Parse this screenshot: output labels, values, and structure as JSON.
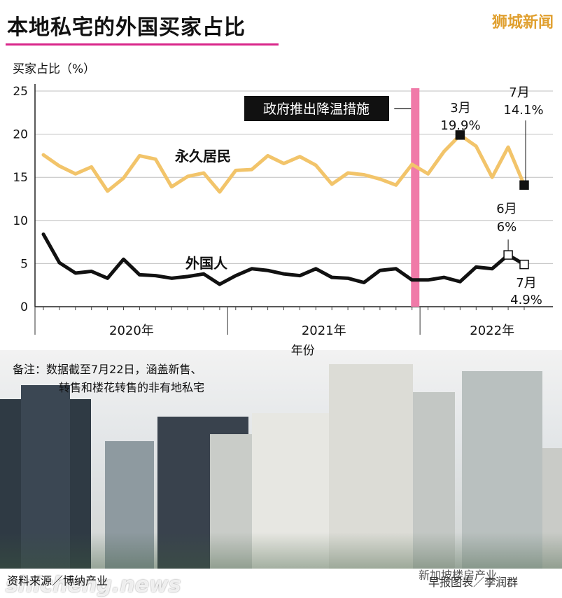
{
  "header": {
    "title": "本地私宅的外国买家占比",
    "brand": "狮城新闻"
  },
  "chart_data": {
    "type": "line",
    "ylabel": "买家占比（%）",
    "xlabel": "年份",
    "ylim": [
      0,
      25
    ],
    "yticks": [
      0,
      5,
      10,
      15,
      20,
      25
    ],
    "year_labels": [
      "2020年",
      "2021年",
      "2022年"
    ],
    "months_start": "2020-01",
    "series": [
      {
        "name": "永久居民",
        "color": "#f2c46a",
        "values": [
          17.6,
          16.3,
          15.4,
          16.2,
          13.4,
          14.9,
          17.5,
          17.1,
          13.9,
          15.1,
          15.5,
          13.3,
          15.8,
          15.9,
          17.5,
          16.6,
          17.4,
          16.4,
          14.2,
          15.5,
          15.3,
          14.8,
          14.1,
          16.5,
          15.4,
          18.0,
          19.9,
          18.6,
          15.0,
          18.5,
          14.1
        ]
      },
      {
        "name": "外国人",
        "color": "#111111",
        "values": [
          8.4,
          5.1,
          3.9,
          4.1,
          3.3,
          5.5,
          3.7,
          3.6,
          3.3,
          3.5,
          3.8,
          2.6,
          3.6,
          4.4,
          4.2,
          3.8,
          3.6,
          4.4,
          3.4,
          3.3,
          2.8,
          4.2,
          4.4,
          3.1,
          3.1,
          3.4,
          2.9,
          4.6,
          4.4,
          6.0,
          4.9
        ]
      }
    ],
    "event": {
      "label": "政府推出降温措施",
      "at_month_index": 23.2,
      "color": "#f07aa8"
    },
    "annotations": [
      {
        "series": "永久居民",
        "index": 26,
        "month": "3月",
        "value": "19.9%",
        "marker": "filled"
      },
      {
        "series": "永久居民",
        "index": 30,
        "month": "7月",
        "value": "14.1%",
        "marker": "filled"
      },
      {
        "series": "外国人",
        "index": 29,
        "month": "6月",
        "value": "6%",
        "marker": "hollow"
      },
      {
        "series": "外国人",
        "index": 30,
        "month": "7月",
        "value": "4.9%",
        "marker": "hollow"
      }
    ]
  },
  "notes": {
    "line1": "备注：数据截至7月22日，涵盖新售、",
    "line2": "转售和楼花转售的非有地私宅"
  },
  "footer": {
    "source": "资料来源／博纳产业",
    "credit": "早报图表／李润群",
    "wechat": "新加坡楼房产业",
    "watermark": "shicheng.news"
  }
}
